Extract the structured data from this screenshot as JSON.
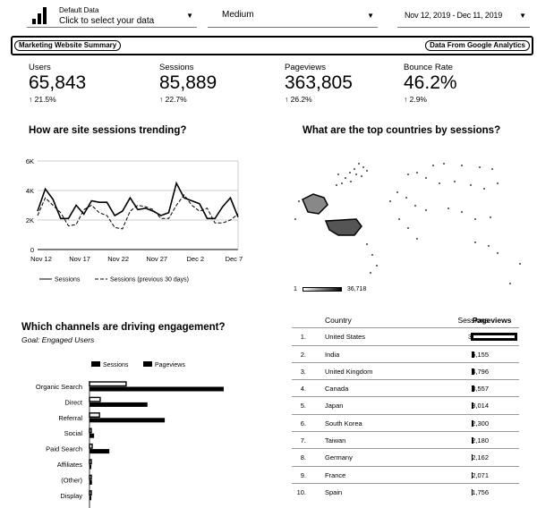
{
  "controls": {
    "data_source_label": "Default Data",
    "data_source_value": "Click to select your data",
    "device_value": "Medium",
    "date_range": "Nov 12, 2019 - Dec 11, 2019"
  },
  "header": {
    "left_title": "Marketing Website Summary",
    "right_title": "Data From Google Analytics"
  },
  "kpis": [
    {
      "label": "Users",
      "value": "65,843",
      "change": "↑ 21.5%"
    },
    {
      "label": "Sessions",
      "value": "85,889",
      "change": "↑ 22.7%"
    },
    {
      "label": "Pageviews",
      "value": "363,805",
      "change": "↑ 26.2%"
    },
    {
      "label": "Bounce Rate",
      "value": "46.2%",
      "change": "↑ 2.9%"
    }
  ],
  "sessions_chart_title": "How are site sessions trending?",
  "countries_title": "What are the top countries by sessions?",
  "channels_title": "Which channels are driving engagement?",
  "channels_subtitle": "Goal: Engaged Users",
  "map_legend": {
    "min": "1",
    "max": "36,718"
  },
  "colors": {
    "ink": "#000000",
    "background": "#ffffff"
  },
  "chart_data": [
    {
      "type": "line",
      "x_labels": [
        "Nov 12",
        "Nov 17",
        "Nov 22",
        "Nov 27",
        "Dec 2",
        "Dec 7"
      ],
      "y_ticks": [
        "0",
        "2K",
        "4K",
        "6K"
      ],
      "ylim": [
        0,
        6000
      ],
      "grid": true,
      "legend_position": "bottom",
      "series": [
        {
          "name": "Sessions",
          "values": [
            2600,
            4100,
            3400,
            2100,
            2100,
            3000,
            2400,
            3300,
            3200,
            3200,
            2300,
            2600,
            3500,
            2700,
            2800,
            2600,
            2300,
            2500,
            4500,
            3500,
            3300,
            3100,
            2100,
            2100,
            2900,
            3500,
            2200
          ]
        },
        {
          "name": "Sessions (previous 30 days)",
          "values": [
            2300,
            3500,
            3000,
            2500,
            1600,
            1700,
            2700,
            3000,
            2500,
            2300,
            1500,
            1400,
            2600,
            3000,
            2900,
            2700,
            2100,
            2100,
            3000,
            3700,
            3000,
            2600,
            2800,
            1800,
            1800,
            2000,
            2400
          ]
        }
      ]
    },
    {
      "type": "bar",
      "orientation": "horizontal",
      "categories": [
        "Organic Search",
        "Direct",
        "Referral",
        "Social",
        "Paid Search",
        "Affiliates",
        "(Other)",
        "Display"
      ],
      "legend_position": "top",
      "series": [
        {
          "name": "Sessions",
          "values": [
            36000,
            10500,
            9800,
            1600,
            2600,
            300,
            250,
            200
          ]
        },
        {
          "name": "Pageviews",
          "values": [
            132000,
            57000,
            74000,
            4500,
            19500,
            1800,
            2400,
            700
          ]
        }
      ]
    },
    {
      "type": "table",
      "columns": [
        "Country",
        "Sessions",
        "Pageviews"
      ],
      "rows": [
        {
          "rank": "1.",
          "country": "United States",
          "sessions": "36,714",
          "pageviews": 100
        },
        {
          "rank": "2.",
          "country": "India",
          "sessions": "5,155",
          "pageviews": 3
        },
        {
          "rank": "3.",
          "country": "United Kingdom",
          "sessions": "4,796",
          "pageviews": 3
        },
        {
          "rank": "4.",
          "country": "Canada",
          "sessions": "3,557",
          "pageviews": 3
        },
        {
          "rank": "5.",
          "country": "Japan",
          "sessions": "3,014",
          "pageviews": 2
        },
        {
          "rank": "6.",
          "country": "South Korea",
          "sessions": "2,300",
          "pageviews": 2
        },
        {
          "rank": "7.",
          "country": "Taiwan",
          "sessions": "2,180",
          "pageviews": 2
        },
        {
          "rank": "8.",
          "country": "Germany",
          "sessions": "2,162",
          "pageviews": 1
        },
        {
          "rank": "9.",
          "country": "France",
          "sessions": "2,071",
          "pageviews": 1
        },
        {
          "rank": "10.",
          "country": "Spain",
          "sessions": "1,756",
          "pageviews": 1
        }
      ]
    }
  ]
}
